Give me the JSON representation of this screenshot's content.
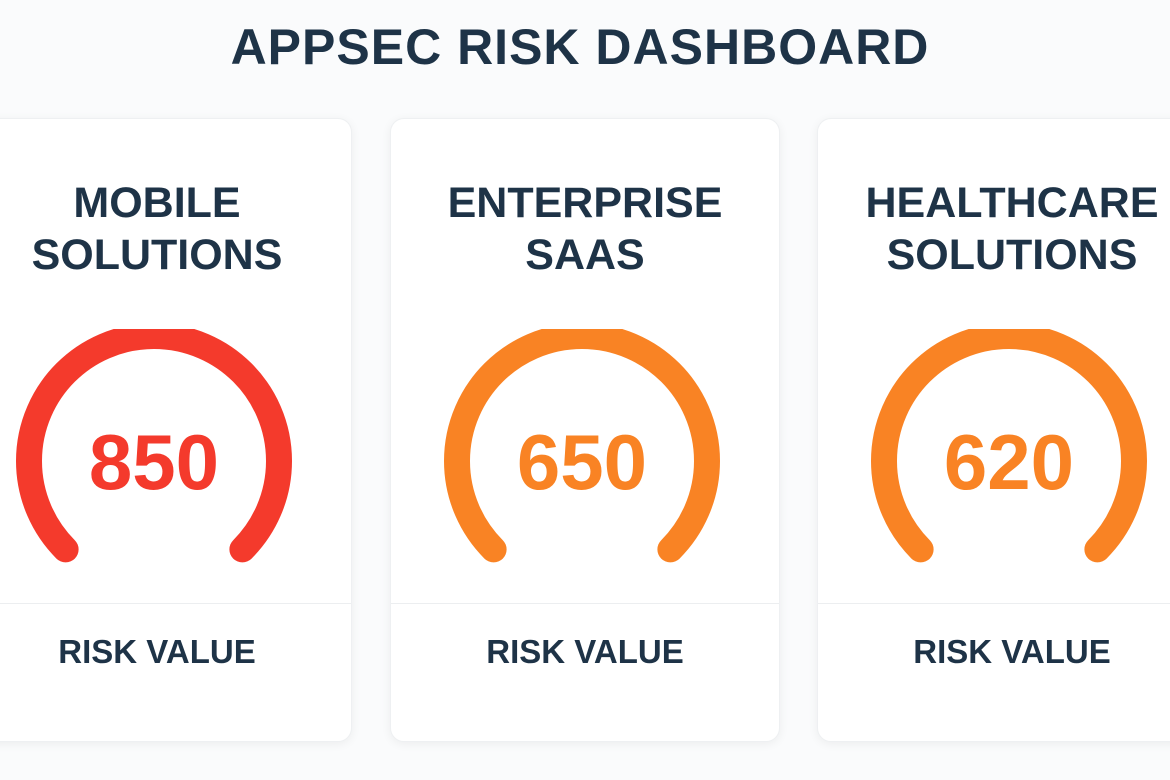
{
  "header": {
    "title": "APPSEC RISK DASHBOARD"
  },
  "colors": {
    "text": "#1e3347",
    "high": "#f43a2c",
    "medium": "#f98324"
  },
  "cards": [
    {
      "name_line1": "MOBILE",
      "name_line2": "SOLUTIONS",
      "value": "850",
      "label": "RISK VALUE",
      "color": "#f43a2c"
    },
    {
      "name_line1": "ENTERPRISE",
      "name_line2": "SAAS",
      "value": "650",
      "label": "RISK VALUE",
      "color": "#f98324"
    },
    {
      "name_line1": "HEALTHCARE",
      "name_line2": "SOLUTIONS",
      "value": "620",
      "label": "RISK VALUE",
      "color": "#f98324"
    }
  ]
}
